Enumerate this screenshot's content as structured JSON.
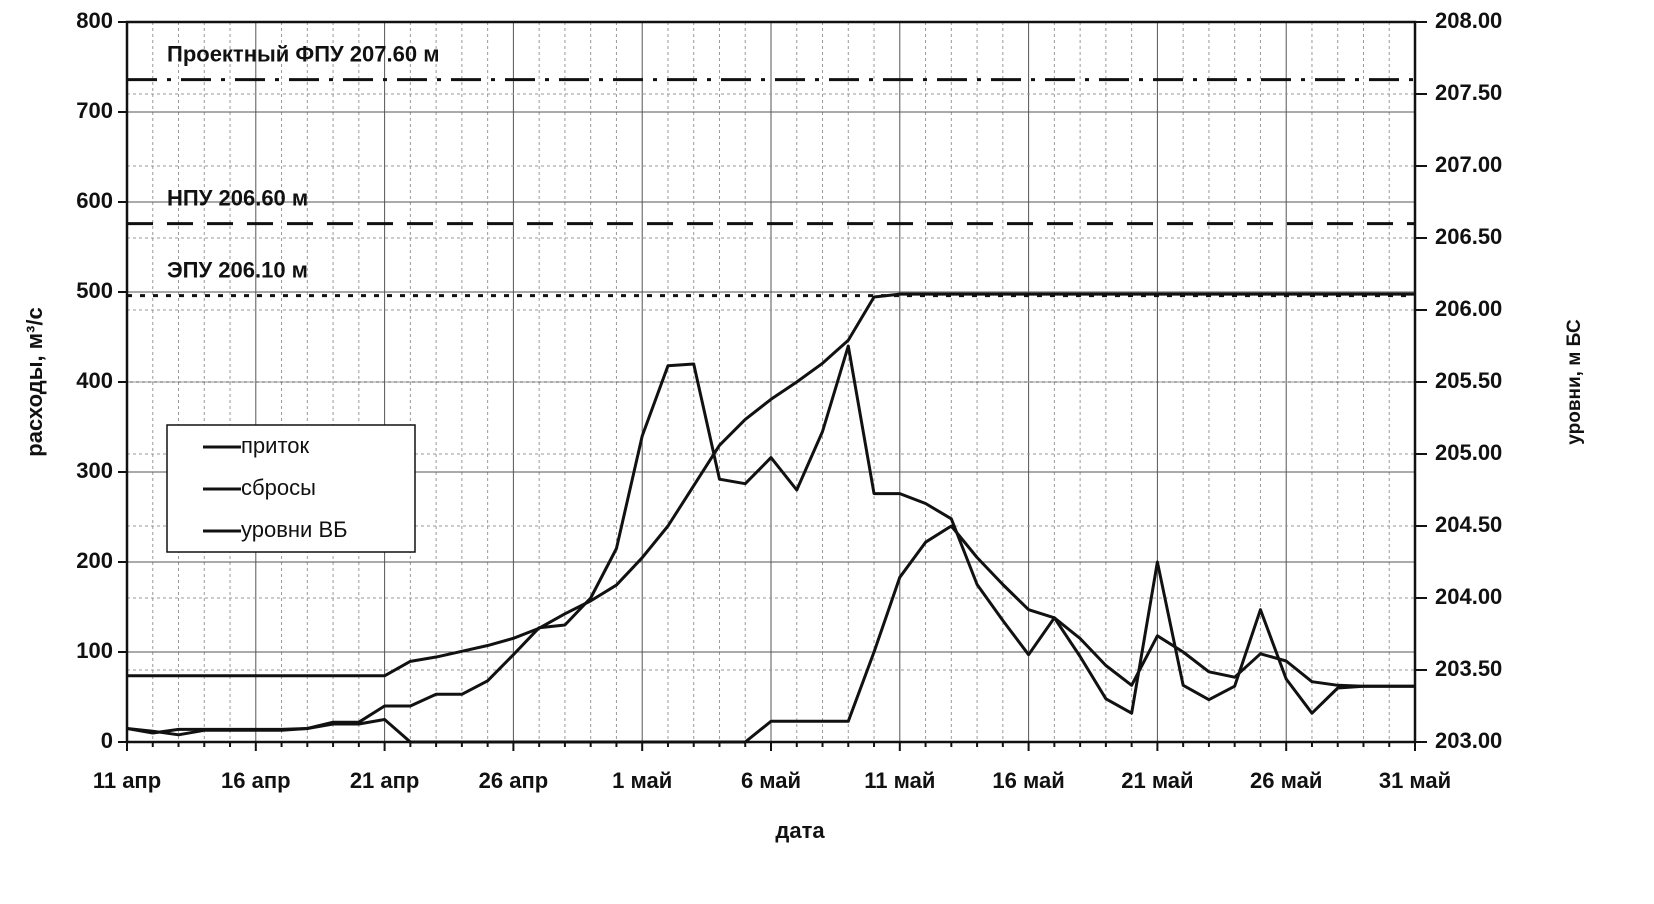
{
  "chart_data": {
    "type": "line",
    "categories": [
      "11 апр",
      null,
      null,
      null,
      null,
      "16 апр",
      null,
      null,
      null,
      null,
      "21 апр",
      null,
      null,
      null,
      null,
      "26 апр",
      null,
      null,
      null,
      null,
      "1 май",
      null,
      null,
      null,
      null,
      "6 май",
      null,
      null,
      null,
      null,
      "11 май",
      null,
      null,
      null,
      null,
      "16 май",
      null,
      null,
      null,
      null,
      "21 май",
      null,
      null,
      null,
      null,
      "26 май",
      null,
      null,
      null,
      null,
      "31 май"
    ],
    "xlabel": "дата",
    "ylabel": "расходы, м³/с",
    "y2label": "уровни, м БС",
    "ylim": [
      0,
      800
    ],
    "yticks": [
      0,
      100,
      200,
      300,
      400,
      500,
      600,
      700,
      800
    ],
    "y2lim": [
      203,
      208
    ],
    "y2ticks": [
      {
        "value": 203,
        "label": "203.00"
      },
      {
        "value": 203.5,
        "label": "203.50"
      },
      {
        "value": 204,
        "label": "204.00"
      },
      {
        "value": 204.5,
        "label": "204.50"
      },
      {
        "value": 205,
        "label": "205.00"
      },
      {
        "value": 205.5,
        "label": "205.50"
      },
      {
        "value": 206,
        "label": "206.00"
      },
      {
        "value": 206.5,
        "label": "206.50"
      },
      {
        "value": 207,
        "label": "207.00"
      },
      {
        "value": 207.5,
        "label": "207.50"
      },
      {
        "value": 208,
        "label": "208.00"
      }
    ],
    "grid": true,
    "series": [
      {
        "name": "приток",
        "color": "#111111",
        "values": [
          15,
          12,
          8,
          13,
          13,
          13,
          13,
          15,
          22,
          22,
          40,
          40,
          53,
          53,
          68,
          97,
          127,
          130,
          160,
          215,
          340,
          418,
          420,
          292,
          287,
          316,
          280,
          345,
          440,
          276,
          276,
          265,
          248,
          175,
          135,
          97,
          138,
          95,
          48,
          32,
          200,
          63,
          47,
          62,
          147,
          70,
          32,
          60,
          62,
          62,
          62
        ]
      },
      {
        "name": "сбросы",
        "color": "#111111",
        "values": [
          15,
          10,
          14,
          14,
          14,
          14,
          14,
          15,
          20,
          20,
          25,
          0,
          0,
          0,
          0,
          0,
          0,
          0,
          0,
          0,
          0,
          0,
          0,
          0,
          0,
          23,
          23,
          23,
          23,
          100,
          183,
          222,
          240,
          205,
          175,
          147,
          138,
          115,
          85,
          63,
          118,
          100,
          78,
          72,
          98,
          90,
          67,
          63,
          62,
          62,
          62
        ]
      },
      {
        "name": "уровни ВБ",
        "color": "#111111",
        "axis": "y2",
        "values": [
          203.46,
          203.46,
          203.46,
          203.46,
          203.46,
          203.46,
          203.46,
          203.46,
          203.46,
          203.46,
          203.46,
          203.56,
          203.59,
          203.63,
          203.67,
          203.72,
          203.79,
          203.89,
          203.98,
          204.09,
          204.28,
          204.5,
          204.78,
          205.06,
          205.24,
          205.38,
          205.5,
          205.63,
          205.79,
          206.09,
          206.11,
          206.11,
          206.11,
          206.11,
          206.11,
          206.11,
          206.11,
          206.11,
          206.11,
          206.11,
          206.11,
          206.11,
          206.11,
          206.11,
          206.11,
          206.11,
          206.11,
          206.11,
          206.11,
          206.11,
          206.11
        ]
      }
    ],
    "reference_lines": [
      {
        "label": "Проектный ФПУ 207.60 м",
        "value": 207.6,
        "style": "dashdot"
      },
      {
        "label": "НПУ 206.60 м",
        "value": 206.6,
        "style": "dash"
      },
      {
        "label": "ЭПУ 206.10 м",
        "value": 206.1,
        "style": "dot"
      }
    ]
  }
}
